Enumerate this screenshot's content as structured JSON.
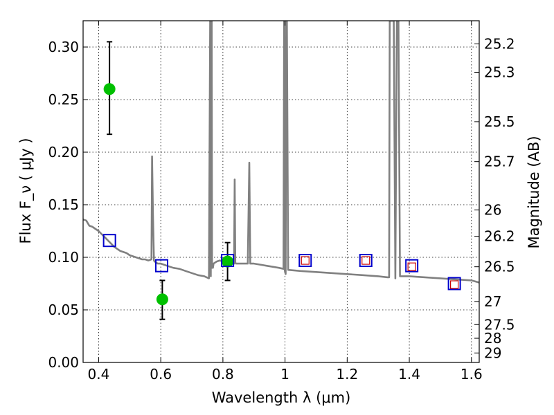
{
  "chart_data": {
    "type": "scatter",
    "title": "",
    "xlabel": "Wavelength  λ (μm)",
    "ylabel": "Flux  F_ν  ( μJy )",
    "ylabel_right": "Magnitude (AB)",
    "xlim": [
      0.35,
      1.625
    ],
    "ylim": [
      0.0,
      0.325
    ],
    "grid": true,
    "x_ticks": [
      0.4,
      0.6,
      0.8,
      1.0,
      1.2,
      1.4,
      1.6
    ],
    "x_tick_labels": [
      "0.4",
      "0.6",
      "0.8",
      "1",
      "1.2",
      "1.4",
      "1.6"
    ],
    "y_ticks": [
      0.0,
      0.05,
      0.1,
      0.15,
      0.2,
      0.25,
      0.3
    ],
    "y_tick_labels": [
      "0.00",
      "0.05",
      "0.10",
      "0.15",
      "0.20",
      "0.25",
      "0.30"
    ],
    "right_ticks": [
      {
        "label": "25.2",
        "flux": 0.303
      },
      {
        "label": "25.3",
        "flux": 0.276
      },
      {
        "label": "25.5",
        "flux": 0.229
      },
      {
        "label": "25.7",
        "flux": 0.191
      },
      {
        "label": "26",
        "flux": 0.145
      },
      {
        "label": "26.2",
        "flux": 0.12
      },
      {
        "label": "26.5",
        "flux": 0.091
      },
      {
        "label": "27",
        "flux": 0.058
      },
      {
        "label": "27.5",
        "flux": 0.036
      },
      {
        "label": "28",
        "flux": 0.023
      },
      {
        "label": "29",
        "flux": 0.009
      }
    ],
    "series": [
      {
        "marker": "circle",
        "color": "#00c000",
        "x": [
          0.435,
          0.605,
          0.815
        ],
        "y": [
          0.26,
          0.06,
          0.096
        ],
        "yerr_low": [
          0.217,
          0.041,
          0.078
        ],
        "yerr_high": [
          0.305,
          0.078,
          0.114
        ]
      },
      {
        "marker": "open-square",
        "color": "#0000cc",
        "x": [
          0.435,
          0.603,
          0.815,
          1.065,
          1.26,
          1.408,
          1.545
        ],
        "y": [
          0.116,
          0.092,
          0.097,
          0.097,
          0.097,
          0.092,
          0.075
        ]
      },
      {
        "marker": "small-open-square",
        "color": "#cc0000",
        "x": [
          1.065,
          1.26,
          1.408,
          1.545
        ],
        "y": [
          0.097,
          0.097,
          0.091,
          0.074
        ]
      },
      {
        "type": "line",
        "color": "#808080",
        "x": [
          0.35,
          0.36,
          0.37,
          0.38,
          0.39,
          0.4,
          0.41,
          0.42,
          0.43,
          0.44,
          0.45,
          0.46,
          0.47,
          0.48,
          0.49,
          0.5,
          0.51,
          0.52,
          0.53,
          0.54,
          0.55,
          0.56,
          0.57,
          0.572,
          0.575,
          0.578,
          0.58,
          0.59,
          0.6,
          0.62,
          0.64,
          0.66,
          0.68,
          0.7,
          0.72,
          0.74,
          0.755,
          0.759,
          0.76,
          0.761,
          0.763,
          0.764,
          0.765,
          0.768,
          0.77,
          0.78,
          0.79,
          0.8,
          0.81,
          0.82,
          0.83,
          0.836,
          0.838,
          0.84,
          0.842,
          0.844,
          0.85,
          0.86,
          0.87,
          0.88,
          0.885,
          0.888,
          0.891,
          0.894,
          0.9,
          0.92,
          0.94,
          0.96,
          0.98,
          0.995,
          0.997,
          0.998,
          0.999,
          1.0,
          1.002,
          1.004,
          1.006,
          1.01,
          1.05,
          1.1,
          1.15,
          1.2,
          1.25,
          1.3,
          1.33,
          1.335,
          1.337,
          1.345,
          1.35,
          1.355,
          1.36,
          1.362,
          1.365,
          1.37,
          1.375,
          1.38,
          1.4,
          1.45,
          1.5,
          1.55,
          1.6,
          1.625
        ],
        "y": [
          0.136,
          0.135,
          0.13,
          0.129,
          0.127,
          0.125,
          0.122,
          0.119,
          0.116,
          0.113,
          0.11,
          0.108,
          0.106,
          0.105,
          0.104,
          0.102,
          0.101,
          0.1,
          0.099,
          0.098,
          0.098,
          0.097,
          0.098,
          0.196,
          0.14,
          0.097,
          0.096,
          0.094,
          0.094,
          0.092,
          0.09,
          0.089,
          0.087,
          0.085,
          0.083,
          0.082,
          0.08,
          0.325,
          0.325,
          0.082,
          0.325,
          0.325,
          0.09,
          0.09,
          0.094,
          0.096,
          0.097,
          0.096,
          0.096,
          0.095,
          0.094,
          0.094,
          0.174,
          0.095,
          0.094,
          0.094,
          0.094,
          0.094,
          0.094,
          0.094,
          0.19,
          0.094,
          0.094,
          0.094,
          0.094,
          0.093,
          0.092,
          0.091,
          0.09,
          0.089,
          0.325,
          0.325,
          0.088,
          0.086,
          0.084,
          0.325,
          0.325,
          0.088,
          0.087,
          0.086,
          0.085,
          0.084,
          0.083,
          0.082,
          0.081,
          0.081,
          0.325,
          0.325,
          0.325,
          0.08,
          0.325,
          0.325,
          0.325,
          0.082,
          0.082,
          0.082,
          0.082,
          0.081,
          0.08,
          0.079,
          0.078,
          0.076
        ]
      }
    ]
  }
}
